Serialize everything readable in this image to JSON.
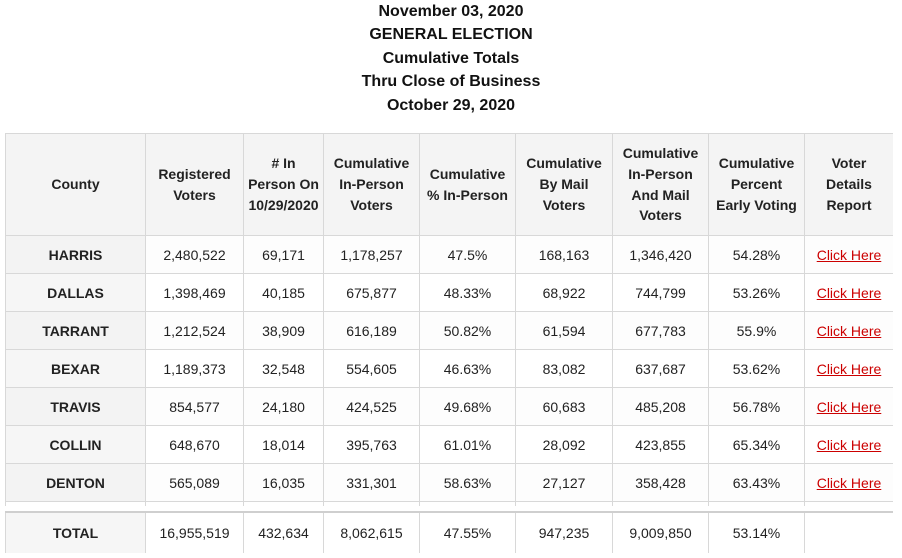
{
  "header": {
    "line1": "November 03, 2020",
    "line2": "GENERAL ELECTION",
    "line3": "Cumulative Totals",
    "line4": "Thru Close of Business",
    "line5": "October 29, 2020"
  },
  "columns": [
    "County",
    "Registered Voters",
    "# In Person On 10/29/2020",
    "Cumulative In-Person Voters",
    "Cumulative % In-Person",
    "Cumulative By Mail Voters",
    "Cumulative In-Person And Mail Voters",
    "Cumulative Percent Early Voting",
    "Voter Details Report"
  ],
  "link_label": "Click Here",
  "rows": [
    {
      "county": "HARRIS",
      "registered": "2,480,522",
      "in_person_day": "69,171",
      "cum_in_person": "1,178,257",
      "pct_in_person": "47.5%",
      "by_mail": "168,163",
      "in_person_and_mail": "1,346,420",
      "pct_early": "54.28%"
    },
    {
      "county": "DALLAS",
      "registered": "1,398,469",
      "in_person_day": "40,185",
      "cum_in_person": "675,877",
      "pct_in_person": "48.33%",
      "by_mail": "68,922",
      "in_person_and_mail": "744,799",
      "pct_early": "53.26%"
    },
    {
      "county": "TARRANT",
      "registered": "1,212,524",
      "in_person_day": "38,909",
      "cum_in_person": "616,189",
      "pct_in_person": "50.82%",
      "by_mail": "61,594",
      "in_person_and_mail": "677,783",
      "pct_early": "55.9%"
    },
    {
      "county": "BEXAR",
      "registered": "1,189,373",
      "in_person_day": "32,548",
      "cum_in_person": "554,605",
      "pct_in_person": "46.63%",
      "by_mail": "83,082",
      "in_person_and_mail": "637,687",
      "pct_early": "53.62%"
    },
    {
      "county": "TRAVIS",
      "registered": "854,577",
      "in_person_day": "24,180",
      "cum_in_person": "424,525",
      "pct_in_person": "49.68%",
      "by_mail": "60,683",
      "in_person_and_mail": "485,208",
      "pct_early": "56.78%"
    },
    {
      "county": "COLLIN",
      "registered": "648,670",
      "in_person_day": "18,014",
      "cum_in_person": "395,763",
      "pct_in_person": "61.01%",
      "by_mail": "28,092",
      "in_person_and_mail": "423,855",
      "pct_early": "65.34%"
    },
    {
      "county": "DENTON",
      "registered": "565,089",
      "in_person_day": "16,035",
      "cum_in_person": "331,301",
      "pct_in_person": "58.63%",
      "by_mail": "27,127",
      "in_person_and_mail": "358,428",
      "pct_early": "63.43%"
    }
  ],
  "total": {
    "county": "TOTAL",
    "registered": "16,955,519",
    "in_person_day": "432,634",
    "cum_in_person": "8,062,615",
    "pct_in_person": "47.55%",
    "by_mail": "947,235",
    "in_person_and_mail": "9,009,850",
    "pct_early": "53.14%"
  },
  "colors": {
    "link": "#cc0000",
    "header_bg": "#f4f4f4",
    "border": "#d8d8d8"
  }
}
